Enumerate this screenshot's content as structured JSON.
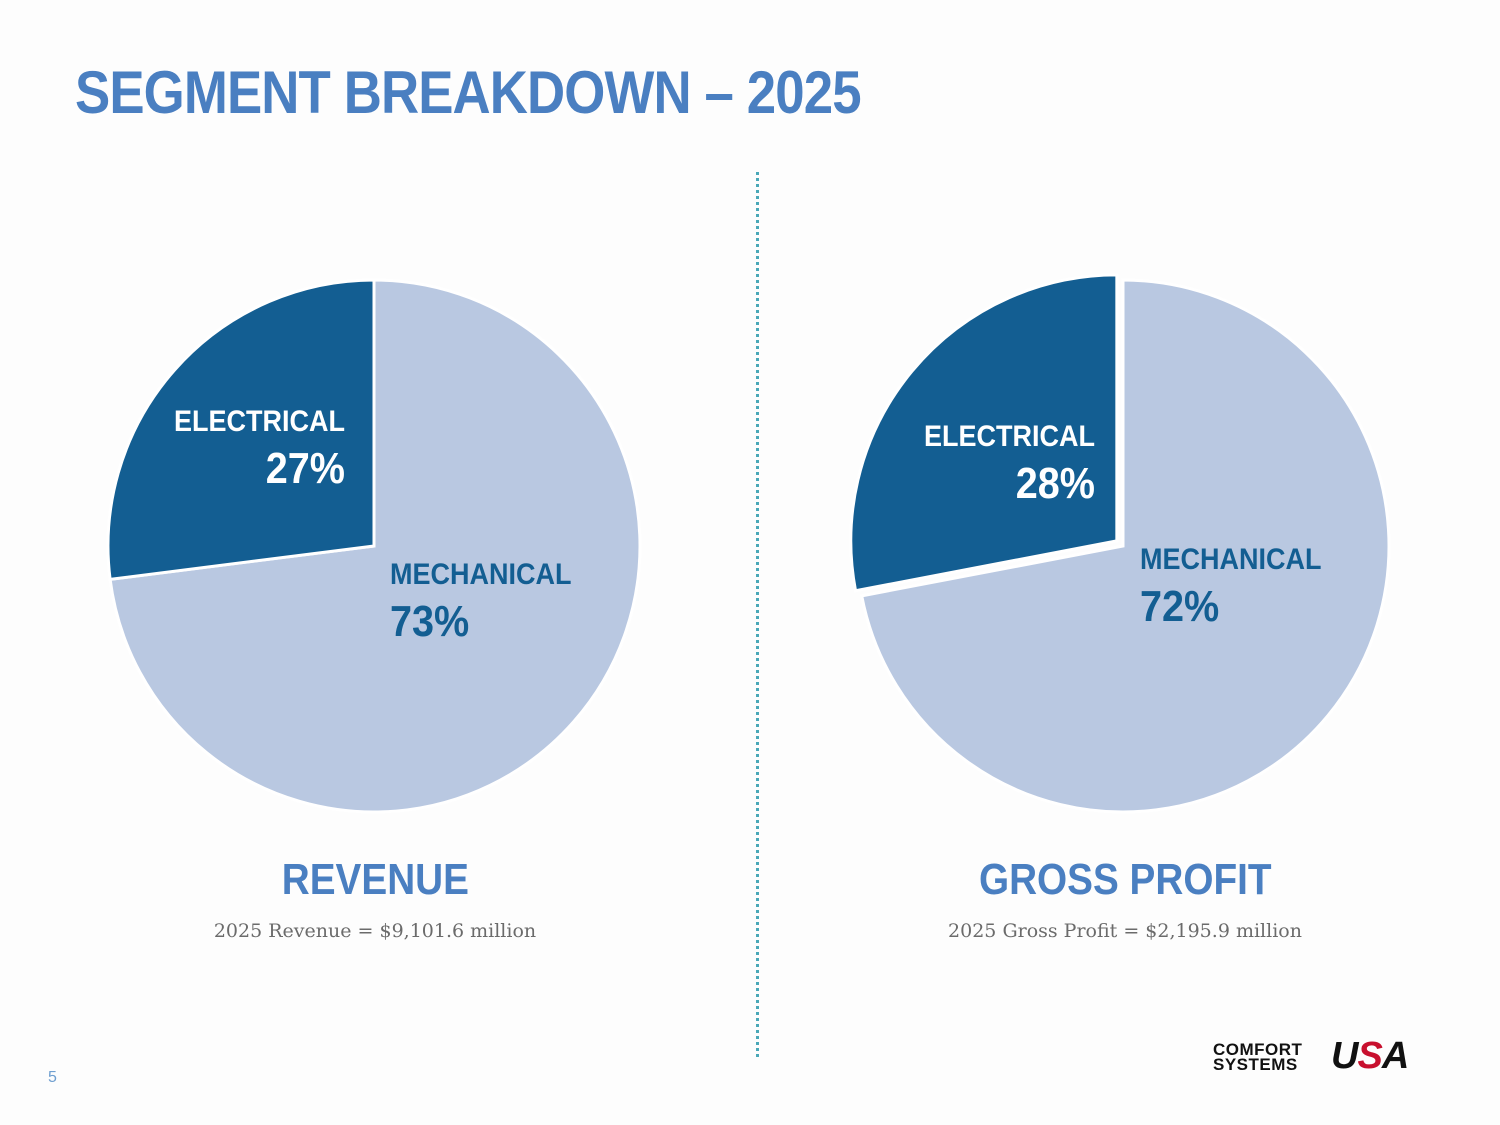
{
  "title": "SEGMENT BREAKDOWN – 2025",
  "page_number": "5",
  "colors": {
    "title": "#4a7fc1",
    "electrical": "#135e92",
    "mechanical": "#b9c8e1",
    "chart_title": "#4a7fc1",
    "label_dark": "#135e92",
    "label_light": "#ffffff"
  },
  "logo": {
    "line1": "COMFORT",
    "line2": "SYSTEMS",
    "mark_u": "U",
    "mark_s": "S",
    "mark_a": "A"
  },
  "chart_data": [
    {
      "type": "pie",
      "title": "REVENUE",
      "subtitle": "2025 Revenue = $9,101.6 million",
      "slices": [
        {
          "name": "ELECTRICAL",
          "value": 27,
          "label": "27%"
        },
        {
          "name": "MECHANICAL",
          "value": 73,
          "label": "73%"
        }
      ]
    },
    {
      "type": "pie",
      "title": "GROSS PROFIT",
      "subtitle": "2025 Gross Profit = $2,195.9 million",
      "slices": [
        {
          "name": "ELECTRICAL",
          "value": 28,
          "label": "28%"
        },
        {
          "name": "MECHANICAL",
          "value": 72,
          "label": "72%"
        }
      ]
    }
  ]
}
